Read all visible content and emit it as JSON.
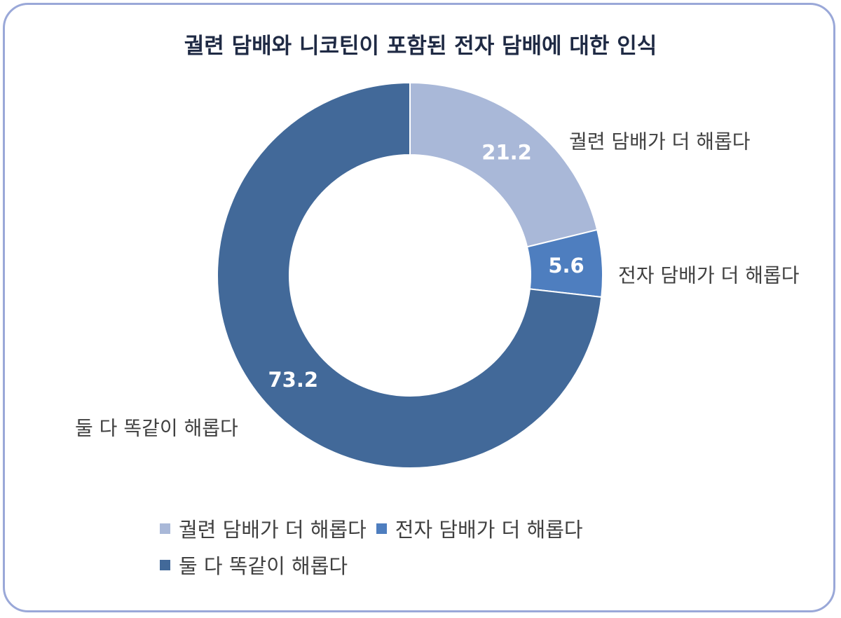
{
  "chart_data": {
    "type": "pie",
    "variant": "donut",
    "title": "궐련 담배와 니코틴이 포함된 전자 담배에 대한 인식",
    "categories": [
      "궐련 담배가 더 해롭다",
      "전자 담배가 더 해롭다",
      "둘 다 똑같이 해롭다"
    ],
    "values": [
      21.2,
      5.6,
      73.2
    ],
    "value_labels": [
      "21.2",
      "5.6",
      "73.2"
    ],
    "colors": [
      "#a9b8d8",
      "#4e7ebf",
      "#426999"
    ],
    "legend_position": "bottom"
  }
}
